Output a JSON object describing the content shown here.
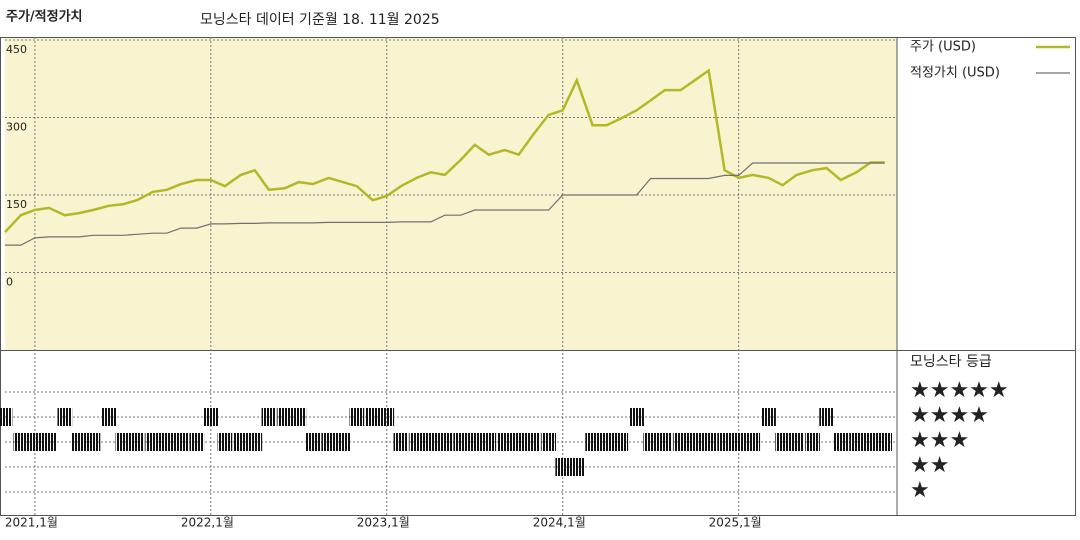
{
  "chart_data": [
    {
      "type": "line",
      "title": "주가/적정가치",
      "subtitle": "모닝스타 데이터 기준월 18. 11월 2025",
      "x": [
        2020.83,
        2020.92,
        2021,
        2021.08,
        2021.17,
        2021.25,
        2021.33,
        2021.42,
        2021.5,
        2021.58,
        2021.67,
        2021.75,
        2021.83,
        2021.92,
        2022,
        2022.08,
        2022.17,
        2022.25,
        2022.33,
        2022.42,
        2022.5,
        2022.58,
        2022.67,
        2022.75,
        2022.83,
        2022.92,
        2023,
        2023.08,
        2023.17,
        2023.25,
        2023.33,
        2023.42,
        2023.5,
        2023.58,
        2023.67,
        2023.75,
        2023.83,
        2023.92,
        2024,
        2024.08,
        2024.17,
        2024.25,
        2024.33,
        2024.42,
        2024.5,
        2024.58,
        2024.67,
        2024.75,
        2024.83,
        2024.92,
        2025,
        2025.08,
        2025.17,
        2025.25,
        2025.33,
        2025.42,
        2025.5,
        2025.58,
        2025.67,
        2025.75,
        2025.83
      ],
      "series": [
        {
          "name": "주가 (USD)",
          "color": "#b3b829",
          "values": [
            78,
            111,
            121,
            125,
            111,
            115,
            121,
            129,
            132,
            140,
            156,
            160,
            171,
            179,
            179,
            167,
            189,
            198,
            160,
            163,
            175,
            171,
            183,
            175,
            167,
            140,
            148,
            167,
            183,
            194,
            189,
            218,
            247,
            228,
            237,
            228,
            266,
            305,
            314,
            372,
            285,
            285,
            298,
            314,
            333,
            353,
            353,
            372,
            391,
            198,
            183,
            189,
            183,
            169,
            189,
            198,
            202,
            179,
            194,
            213,
            213
          ]
        },
        {
          "name": "적정가치 (USD)",
          "color": "#707070",
          "values": [
            53,
            53,
            67,
            69,
            69,
            69,
            72,
            72,
            72,
            74,
            76,
            76,
            86,
            86,
            94,
            94,
            95,
            95,
            96,
            96,
            96,
            96,
            97,
            97,
            97,
            97,
            97,
            98,
            98,
            98,
            111,
            111,
            121,
            121,
            121,
            121,
            121,
            121,
            150,
            150,
            150,
            150,
            150,
            150,
            182,
            182,
            182,
            182,
            182,
            188,
            188,
            212,
            212,
            212,
            212,
            212,
            212,
            212,
            212,
            212,
            212
          ]
        }
      ],
      "ylim": [
        -150,
        450
      ],
      "yticks": [
        0,
        150,
        300,
        450
      ],
      "xlim": [
        2020.83,
        2025.9
      ],
      "xticks": [
        {
          "value": 2021,
          "label": "2021,1월"
        },
        {
          "value": 2022,
          "label": "2022,1월"
        },
        {
          "value": 2023,
          "label": "2023,1월"
        },
        {
          "value": 2024,
          "label": "2024,1월"
        },
        {
          "value": 2025,
          "label": "2025,1월"
        }
      ],
      "grid": true
    },
    {
      "type": "rating",
      "title": "모닝스타 등급",
      "x": [
        2020.83,
        2020.92,
        2021,
        2021.08,
        2021.17,
        2021.25,
        2021.33,
        2021.42,
        2021.5,
        2021.58,
        2021.67,
        2021.75,
        2021.83,
        2021.92,
        2022,
        2022.08,
        2022.17,
        2022.25,
        2022.33,
        2022.42,
        2022.5,
        2022.58,
        2022.67,
        2022.75,
        2022.83,
        2022.92,
        2023,
        2023.08,
        2023.17,
        2023.25,
        2023.33,
        2023.42,
        2023.5,
        2023.58,
        2023.67,
        2023.75,
        2023.83,
        2023.92,
        2024,
        2024.08,
        2024.17,
        2024.25,
        2024.33,
        2024.42,
        2024.5,
        2024.58,
        2024.67,
        2024.75,
        2024.83,
        2024.92,
        2025,
        2025.08,
        2025.17,
        2025.25,
        2025.33,
        2025.42,
        2025.5,
        2025.58,
        2025.67,
        2025.75,
        2025.83
      ],
      "values": [
        4,
        3,
        3,
        3,
        4,
        3,
        3,
        4,
        3,
        3,
        3,
        3,
        3,
        3,
        4,
        3,
        3,
        3,
        4,
        4,
        4,
        3,
        3,
        3,
        4,
        4,
        4,
        3,
        3,
        3,
        3,
        3,
        3,
        3,
        3,
        3,
        3,
        3,
        2,
        2,
        3,
        3,
        3,
        4,
        3,
        3,
        3,
        3,
        3,
        3,
        3,
        3,
        4,
        3,
        3,
        3,
        4,
        3,
        3,
        3,
        3
      ],
      "yticks": [
        {
          "value": 5,
          "label": "★★★★★"
        },
        {
          "value": 4,
          "label": "★★★★"
        },
        {
          "value": 3,
          "label": "★★★"
        },
        {
          "value": 2,
          "label": "★★"
        },
        {
          "value": 1,
          "label": "★"
        }
      ],
      "color": "#111111"
    }
  ]
}
